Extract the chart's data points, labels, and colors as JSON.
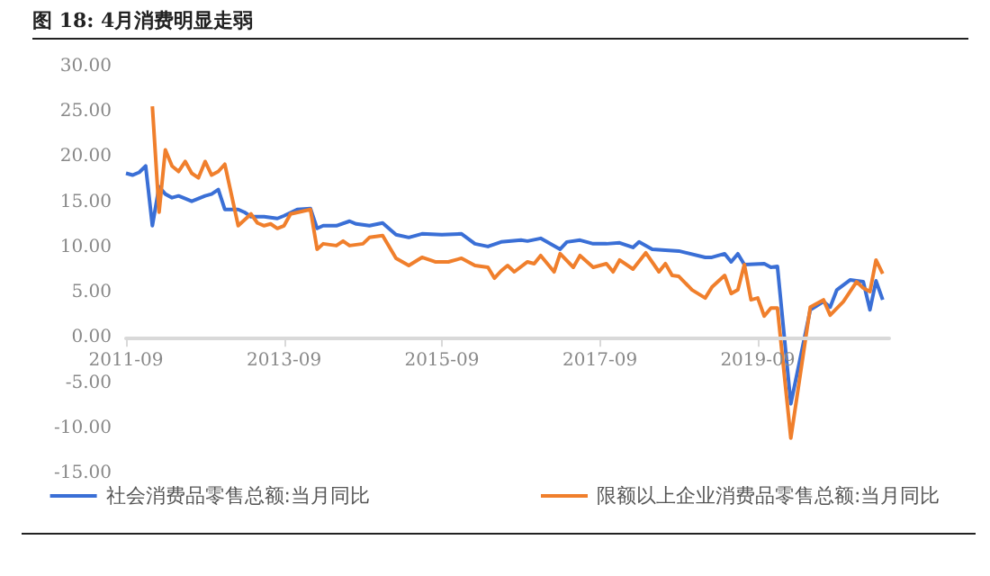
{
  "chart_data": {
    "type": "line",
    "title": "图 18: 4月消费明显走弱",
    "xlim": [
      "2011-09",
      "2021-05"
    ],
    "xticks": [
      "2011-09",
      "2013-09",
      "2015-09",
      "2017-09",
      "2019-09"
    ],
    "ylim": [
      -15,
      30
    ],
    "yticks": [
      {
        "value": -15,
        "label": "-15.00"
      },
      {
        "value": -10,
        "label": "-10.00"
      },
      {
        "value": -5,
        "label": "-5.00"
      },
      {
        "value": 0,
        "label": "0.00"
      },
      {
        "value": 5,
        "label": "5.00"
      },
      {
        "value": 10,
        "label": "10.00"
      },
      {
        "value": 15,
        "label": "15.00"
      },
      {
        "value": 20,
        "label": "20.00"
      },
      {
        "value": 25,
        "label": "25.00"
      },
      {
        "value": 30,
        "label": "30.00"
      }
    ],
    "grid": false,
    "legend": "bottom",
    "marker": "none",
    "line_style": "solid",
    "series": [
      {
        "name": "社会消费品零售总额:当月同比",
        "color": "#3a6fd6",
        "x": [
          "2011-09",
          "2011-10",
          "2011-11",
          "2011-12",
          "2012-01",
          "2012-02",
          "2012-03",
          "2012-04",
          "2012-05",
          "2012-06",
          "2012-07",
          "2012-08",
          "2012-09",
          "2012-10",
          "2012-11",
          "2012-12",
          "2013-02",
          "2013-03",
          "2013-04",
          "2013-06",
          "2013-08",
          "2013-09",
          "2013-11",
          "2014-01",
          "2014-02",
          "2014-03",
          "2014-05",
          "2014-07",
          "2014-08",
          "2014-10",
          "2014-12",
          "2015-02",
          "2015-04",
          "2015-06",
          "2015-09",
          "2015-12",
          "2016-02",
          "2016-04",
          "2016-06",
          "2016-09",
          "2016-10",
          "2016-12",
          "2017-03",
          "2017-04",
          "2017-06",
          "2017-08",
          "2017-10",
          "2017-12",
          "2018-02",
          "2018-03",
          "2018-05",
          "2018-07",
          "2018-09",
          "2019-01",
          "2019-02",
          "2019-04",
          "2019-05",
          "2019-06",
          "2019-07",
          "2019-10",
          "2019-11",
          "2019-12",
          "2020-02",
          "2020-05",
          "2020-07",
          "2020-08",
          "2020-09",
          "2020-11",
          "2021-01",
          "2021-02",
          "2021-03",
          "2021-04"
        ],
        "values": [
          18.2,
          18.0,
          18.3,
          19.0,
          12.4,
          16.7,
          15.9,
          15.5,
          15.7,
          15.4,
          15.1,
          15.4,
          15.7,
          15.9,
          16.4,
          14.2,
          14.2,
          13.9,
          13.4,
          13.4,
          13.2,
          13.5,
          14.2,
          14.3,
          12.1,
          12.4,
          12.4,
          12.9,
          12.6,
          12.4,
          12.7,
          11.4,
          11.1,
          11.5,
          11.4,
          11.5,
          10.4,
          10.1,
          10.6,
          10.8,
          10.7,
          11.0,
          9.8,
          10.6,
          10.8,
          10.4,
          10.4,
          10.5,
          10.0,
          10.6,
          9.8,
          9.7,
          9.6,
          8.9,
          8.9,
          9.3,
          8.4,
          9.3,
          8.1,
          8.2,
          7.8,
          7.9,
          -7.3,
          3.1,
          4.0,
          3.4,
          5.3,
          6.4,
          6.2,
          3.1,
          6.3,
          4.2
        ]
      },
      {
        "name": "限额以上企业消费品零售总额:当月同比",
        "color": "#f07f2c",
        "x": [
          "2012-01",
          "2012-02",
          "2012-03",
          "2012-04",
          "2012-05",
          "2012-06",
          "2012-07",
          "2012-08",
          "2012-09",
          "2012-10",
          "2012-11",
          "2012-12",
          "2013-02",
          "2013-04",
          "2013-05",
          "2013-06",
          "2013-07",
          "2013-08",
          "2013-09",
          "2013-10",
          "2014-01",
          "2014-02",
          "2014-03",
          "2014-05",
          "2014-06",
          "2014-07",
          "2014-09",
          "2014-10",
          "2014-12",
          "2015-02",
          "2015-04",
          "2015-06",
          "2015-08",
          "2015-10",
          "2015-12",
          "2016-02",
          "2016-04",
          "2016-05",
          "2016-06",
          "2016-07",
          "2016-08",
          "2016-10",
          "2016-11",
          "2016-12",
          "2017-02",
          "2017-03",
          "2017-05",
          "2017-06",
          "2017-08",
          "2017-10",
          "2017-11",
          "2017-12",
          "2018-02",
          "2018-04",
          "2018-06",
          "2018-07",
          "2018-08",
          "2018-09",
          "2018-11",
          "2019-01",
          "2019-02",
          "2019-04",
          "2019-05",
          "2019-06",
          "2019-07",
          "2019-08",
          "2019-09",
          "2019-10",
          "2019-11",
          "2019-12",
          "2020-02",
          "2020-05",
          "2020-07",
          "2020-08",
          "2020-10",
          "2020-12",
          "2021-01",
          "2021-02",
          "2021-03",
          "2021-04"
        ],
        "values": [
          25.6,
          13.9,
          20.8,
          19.0,
          18.4,
          19.5,
          18.2,
          17.7,
          19.5,
          18.0,
          18.4,
          19.2,
          12.4,
          13.7,
          12.7,
          12.4,
          12.6,
          12.1,
          12.4,
          13.7,
          14.2,
          9.8,
          10.4,
          10.2,
          10.7,
          10.2,
          10.4,
          11.1,
          11.3,
          8.8,
          8.0,
          8.9,
          8.4,
          8.4,
          8.8,
          8.0,
          7.8,
          6.6,
          7.4,
          8.0,
          7.3,
          8.4,
          8.2,
          9.1,
          7.3,
          9.3,
          7.8,
          9.1,
          7.8,
          8.2,
          7.3,
          8.6,
          7.6,
          9.4,
          7.3,
          8.2,
          6.9,
          6.8,
          5.3,
          4.4,
          5.6,
          6.9,
          4.9,
          5.3,
          8.1,
          4.2,
          4.4,
          2.4,
          3.3,
          3.3,
          -11.1,
          3.4,
          4.2,
          2.5,
          4.0,
          6.2,
          5.5,
          5.1,
          8.6,
          7.1
        ]
      }
    ]
  }
}
